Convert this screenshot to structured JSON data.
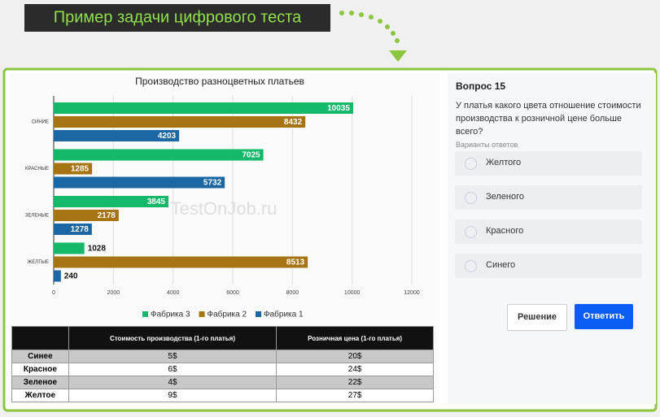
{
  "banner": {
    "title": "Пример задачи цифрового теста"
  },
  "chart_data": {
    "type": "bar",
    "orientation": "horizontal",
    "title": "Производство разноцветных платьев",
    "categories": [
      "СИНИЕ",
      "КРАСНЫЕ",
      "ЗЕЛЕНЫЕ",
      "ЖЕЛТЫЕ"
    ],
    "series": [
      {
        "name": "Фабрика 3",
        "color": "#16b86a",
        "values": [
          10035,
          7025,
          3845,
          1028
        ]
      },
      {
        "name": "Фабрика 2",
        "color": "#a67412",
        "values": [
          8432,
          1285,
          2178,
          8513
        ]
      },
      {
        "name": "Фабрика 1",
        "color": "#1a67a3",
        "values": [
          4203,
          5732,
          1278,
          240
        ]
      }
    ],
    "xlim": [
      0,
      12000
    ],
    "xticks": [
      0,
      2000,
      4000,
      6000,
      8000,
      10000,
      12000
    ],
    "grid": true,
    "legend": "bottom"
  },
  "table": {
    "header": [
      "Стоимость производства (1-го платья)",
      "Розничная цена (1-го платья)"
    ],
    "rows": [
      [
        "Синее",
        "5$",
        "20$"
      ],
      [
        "Красное",
        "6$",
        "24$"
      ],
      [
        "Зеленое",
        "4$",
        "22$"
      ],
      [
        "Желтое",
        "9$",
        "27$"
      ]
    ]
  },
  "watermark": "TestOnJob.ru",
  "question": {
    "title": "Вопрос 15",
    "lines": [
      "У платья какого цвета отношение стоимости",
      "производства к розничной цене больше",
      "всего?"
    ],
    "options_label": "Варианты ответов",
    "options": [
      "Желтого",
      "Зеленого",
      "Красного",
      "Синего"
    ],
    "buttons": [
      "Решение",
      "Ответить"
    ]
  }
}
